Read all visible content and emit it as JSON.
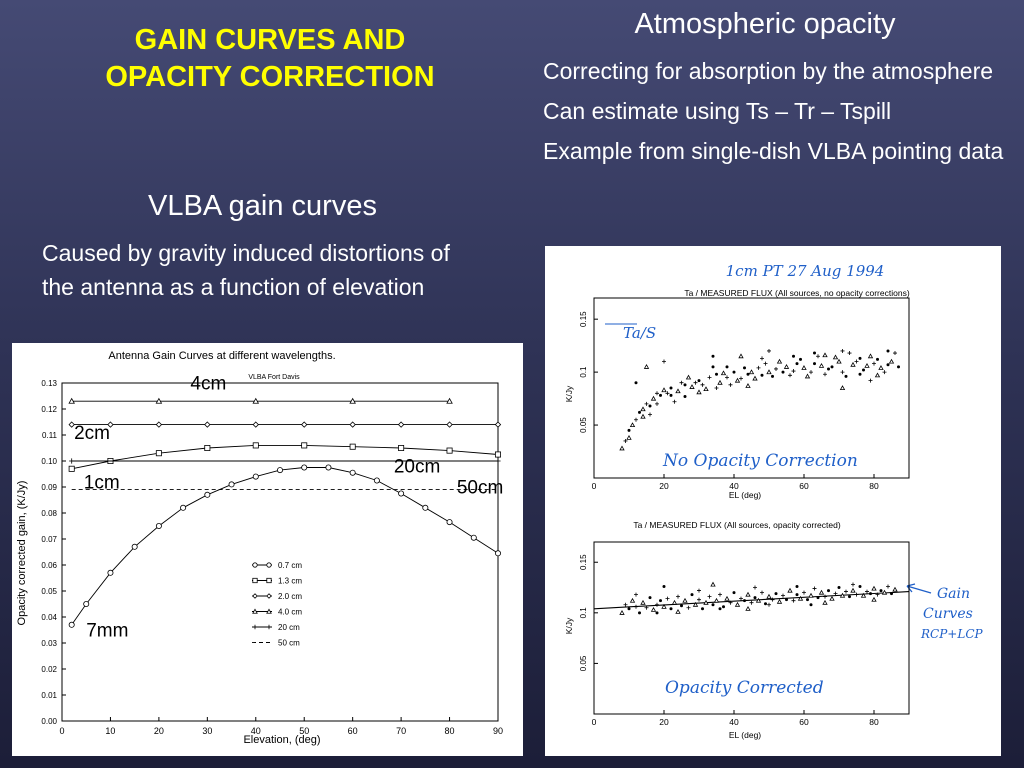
{
  "slide": {
    "title_line1": "GAIN CURVES AND",
    "title_line2": "OPACITY CORRECTION",
    "left_heading": "VLBA gain curves",
    "left_body": "Caused by gravity induced distortions of the antenna as a function of elevation",
    "right_heading": "Atmospheric opacity",
    "right_bullets": [
      "Correcting for absorption by the atmosphere",
      "Can estimate using Ts – Tr – Tspill",
      "Example from single-dish VLBA pointing data"
    ]
  },
  "colors": {
    "title": "#ffff00",
    "text": "#ffffff",
    "annotation_ink": "#1f5fc8"
  },
  "chart_data": [
    {
      "type": "line",
      "title": "Antenna Gain Curves at different wavelengths.",
      "subtitle": "VLBA Fort Davis",
      "xlabel": "Elevation, (deg)",
      "ylabel": "Opacity corrected gain, (K/Jy)",
      "xlim": [
        0,
        90
      ],
      "ylim": [
        0,
        0.13
      ],
      "xticks": [
        0,
        10,
        20,
        30,
        40,
        50,
        60,
        70,
        80,
        90
      ],
      "yticks": [
        0,
        0.01,
        0.02,
        0.03,
        0.04,
        0.05,
        0.06,
        0.07,
        0.08,
        0.09,
        0.1,
        0.11,
        0.12,
        0.13
      ],
      "ytick_labels": [
        "0.00",
        "0.01",
        "0.02",
        "0.03",
        "0.04",
        "0.05",
        "0.06",
        "0.07",
        "0.08",
        "0.09",
        "0.10",
        "0.11",
        "0.12",
        "0.13"
      ],
      "legend_position": "lower-right",
      "series": [
        {
          "name": "0.7 cm",
          "marker": "circle",
          "dash": "",
          "x": [
            2,
            5,
            10,
            15,
            20,
            25,
            30,
            35,
            40,
            45,
            50,
            55,
            60,
            65,
            70,
            75,
            80,
            85,
            90
          ],
          "y": [
            0.037,
            0.045,
            0.057,
            0.067,
            0.075,
            0.082,
            0.087,
            0.091,
            0.094,
            0.0965,
            0.0975,
            0.0975,
            0.0955,
            0.0925,
            0.0875,
            0.082,
            0.0765,
            0.0705,
            0.0645
          ]
        },
        {
          "name": "1.3 cm",
          "marker": "square",
          "dash": "",
          "x": [
            2,
            10,
            20,
            30,
            40,
            50,
            60,
            70,
            80,
            90
          ],
          "y": [
            0.097,
            0.1,
            0.103,
            0.105,
            0.106,
            0.106,
            0.1055,
            0.105,
            0.104,
            0.1025
          ]
        },
        {
          "name": "2.0 cm",
          "marker": "diamond",
          "dash": "",
          "x": [
            2,
            10,
            20,
            30,
            40,
            50,
            60,
            70,
            80,
            90
          ],
          "y": [
            0.114,
            0.114,
            0.114,
            0.114,
            0.114,
            0.114,
            0.114,
            0.114,
            0.114,
            0.114
          ]
        },
        {
          "name": "4.0 cm",
          "marker": "triangle",
          "dash": "",
          "x": [
            2,
            20,
            40,
            60,
            80
          ],
          "y": [
            0.123,
            0.123,
            0.123,
            0.123,
            0.123
          ]
        },
        {
          "name": "20 cm",
          "marker": "plus",
          "dash": "",
          "x": [
            2,
            90
          ],
          "y": [
            0.1,
            0.1
          ]
        },
        {
          "name": "50 cm",
          "marker": "none",
          "dash": "4,3",
          "x": [
            2,
            90
          ],
          "y": [
            0.089,
            0.089
          ]
        }
      ],
      "annotations": [
        {
          "text": "4cm",
          "x": 26.5,
          "y": 0.1275
        },
        {
          "text": "2cm",
          "x": 2.5,
          "y": 0.1085
        },
        {
          "text": "1cm",
          "x": 4.5,
          "y": 0.0895
        },
        {
          "text": "20cm",
          "x": 68.5,
          "y": 0.0955
        },
        {
          "text": "50cm",
          "x": 81.5,
          "y": 0.0875
        },
        {
          "text": "7mm",
          "x": 5,
          "y": 0.0325
        }
      ]
    },
    {
      "type": "scatter",
      "title": "Ta / MEASURED FLUX (All sources, no opacity corrections)",
      "xlabel": "EL (deg)",
      "ylabel": "K/Jy",
      "xlim": [
        0,
        90
      ],
      "ylim": [
        0,
        0.17
      ],
      "xticks": [
        0,
        20,
        40,
        60,
        80
      ],
      "yticks": [
        0.05,
        0.1,
        0.15
      ],
      "ytick_labels": [
        "0.05",
        "0.1",
        "0.15"
      ],
      "header_note": "1cm   PT   27 Aug 1994",
      "annotations": [
        "Ta/S",
        "No Opacity Correction"
      ],
      "points": [
        [
          8,
          0.028
        ],
        [
          9,
          0.035
        ],
        [
          10,
          0.045
        ],
        [
          11,
          0.05
        ],
        [
          12,
          0.055
        ],
        [
          13,
          0.062
        ],
        [
          14,
          0.065
        ],
        [
          15,
          0.07
        ],
        [
          16,
          0.068
        ],
        [
          17,
          0.075
        ],
        [
          18,
          0.08
        ],
        [
          19,
          0.078
        ],
        [
          20,
          0.083
        ],
        [
          21,
          0.08
        ],
        [
          22,
          0.085
        ],
        [
          24,
          0.082
        ],
        [
          25,
          0.09
        ],
        [
          26,
          0.088
        ],
        [
          28,
          0.086
        ],
        [
          29,
          0.09
        ],
        [
          30,
          0.092
        ],
        [
          32,
          0.084
        ],
        [
          33,
          0.095
        ],
        [
          35,
          0.098
        ],
        [
          36,
          0.09
        ],
        [
          38,
          0.095
        ],
        [
          40,
          0.1
        ],
        [
          41,
          0.092
        ],
        [
          42,
          0.094
        ],
        [
          44,
          0.098
        ],
        [
          45,
          0.1
        ],
        [
          47,
          0.104
        ],
        [
          48,
          0.097
        ],
        [
          50,
          0.1
        ],
        [
          52,
          0.103
        ],
        [
          54,
          0.1
        ],
        [
          55,
          0.105
        ],
        [
          57,
          0.101
        ],
        [
          58,
          0.108
        ],
        [
          60,
          0.104
        ],
        [
          62,
          0.1
        ],
        [
          63,
          0.108
        ],
        [
          65,
          0.106
        ],
        [
          66,
          0.098
        ],
        [
          68,
          0.105
        ],
        [
          70,
          0.11
        ],
        [
          71,
          0.1
        ],
        [
          72,
          0.096
        ],
        [
          74,
          0.107
        ],
        [
          75,
          0.11
        ],
        [
          77,
          0.102
        ],
        [
          78,
          0.106
        ],
        [
          80,
          0.108
        ],
        [
          81,
          0.112
        ],
        [
          82,
          0.104
        ],
        [
          83,
          0.1
        ],
        [
          84,
          0.107
        ],
        [
          85,
          0.11
        ],
        [
          86,
          0.118
        ],
        [
          87,
          0.105
        ],
        [
          14,
          0.058
        ],
        [
          18,
          0.07
        ],
        [
          22,
          0.078
        ],
        [
          27,
          0.095
        ],
        [
          31,
          0.088
        ],
        [
          34,
          0.105
        ],
        [
          37,
          0.099
        ],
        [
          39,
          0.088
        ],
        [
          43,
          0.104
        ],
        [
          46,
          0.094
        ],
        [
          49,
          0.108
        ],
        [
          51,
          0.096
        ],
        [
          53,
          0.11
        ],
        [
          56,
          0.097
        ],
        [
          59,
          0.112
        ],
        [
          61,
          0.096
        ],
        [
          64,
          0.115
        ],
        [
          67,
          0.103
        ],
        [
          69,
          0.114
        ],
        [
          73,
          0.118
        ],
        [
          76,
          0.098
        ],
        [
          79,
          0.115
        ],
        [
          23,
          0.072
        ],
        [
          26,
          0.077
        ],
        [
          30,
          0.081
        ],
        [
          35,
          0.085
        ],
        [
          12,
          0.09
        ],
        [
          15,
          0.105
        ],
        [
          20,
          0.11
        ],
        [
          34,
          0.115
        ],
        [
          42,
          0.115
        ],
        [
          50,
          0.12
        ],
        [
          63,
          0.118
        ],
        [
          71,
          0.085
        ],
        [
          79,
          0.092
        ],
        [
          84,
          0.12
        ],
        [
          10,
          0.038
        ],
        [
          16,
          0.06
        ],
        [
          38,
          0.105
        ],
        [
          44,
          0.087
        ],
        [
          48,
          0.113
        ],
        [
          57,
          0.115
        ],
        [
          66,
          0.116
        ],
        [
          71,
          0.12
        ],
        [
          76,
          0.113
        ],
        [
          81,
          0.097
        ]
      ]
    },
    {
      "type": "scatter",
      "title": "Ta / MEASURED FLUX (All sources, opacity corrected)",
      "xlabel": "EL (deg)",
      "ylabel": "K/Jy",
      "xlim": [
        0,
        90
      ],
      "ylim": [
        0,
        0.17
      ],
      "xticks": [
        0,
        20,
        40,
        60,
        80
      ],
      "yticks": [
        0.05,
        0.1,
        0.15
      ],
      "ytick_labels": [
        "0.05",
        "0.1",
        "0.15"
      ],
      "annotations": [
        "Opacity Corrected",
        "Gain",
        "Curves",
        "RCP+LCP"
      ],
      "gain_curve": {
        "x": [
          0,
          90
        ],
        "y": [
          0.104,
          0.121
        ]
      },
      "points": [
        [
          8,
          0.1
        ],
        [
          9,
          0.108
        ],
        [
          10,
          0.104
        ],
        [
          11,
          0.112
        ],
        [
          12,
          0.106
        ],
        [
          13,
          0.1
        ],
        [
          14,
          0.11
        ],
        [
          15,
          0.105
        ],
        [
          16,
          0.115
        ],
        [
          17,
          0.103
        ],
        [
          18,
          0.108
        ],
        [
          19,
          0.112
        ],
        [
          20,
          0.106
        ],
        [
          21,
          0.114
        ],
        [
          22,
          0.104
        ],
        [
          23,
          0.11
        ],
        [
          24,
          0.116
        ],
        [
          25,
          0.107
        ],
        [
          26,
          0.112
        ],
        [
          27,
          0.105
        ],
        [
          28,
          0.118
        ],
        [
          29,
          0.108
        ],
        [
          30,
          0.113
        ],
        [
          31,
          0.104
        ],
        [
          32,
          0.11
        ],
        [
          33,
          0.116
        ],
        [
          34,
          0.108
        ],
        [
          35,
          0.112
        ],
        [
          36,
          0.118
        ],
        [
          37,
          0.106
        ],
        [
          38,
          0.114
        ],
        [
          39,
          0.11
        ],
        [
          40,
          0.12
        ],
        [
          41,
          0.108
        ],
        [
          42,
          0.114
        ],
        [
          43,
          0.112
        ],
        [
          44,
          0.118
        ],
        [
          45,
          0.11
        ],
        [
          46,
          0.115
        ],
        [
          47,
          0.112
        ],
        [
          48,
          0.12
        ],
        [
          49,
          0.109
        ],
        [
          50,
          0.116
        ],
        [
          51,
          0.113
        ],
        [
          52,
          0.119
        ],
        [
          53,
          0.111
        ],
        [
          54,
          0.117
        ],
        [
          55,
          0.113
        ],
        [
          56,
          0.122
        ],
        [
          57,
          0.112
        ],
        [
          58,
          0.118
        ],
        [
          59,
          0.114
        ],
        [
          60,
          0.12
        ],
        [
          61,
          0.113
        ],
        [
          62,
          0.117
        ],
        [
          63,
          0.124
        ],
        [
          64,
          0.115
        ],
        [
          65,
          0.12
        ],
        [
          66,
          0.116
        ],
        [
          67,
          0.122
        ],
        [
          68,
          0.114
        ],
        [
          69,
          0.119
        ],
        [
          70,
          0.125
        ],
        [
          71,
          0.117
        ],
        [
          72,
          0.121
        ],
        [
          73,
          0.116
        ],
        [
          74,
          0.122
        ],
        [
          75,
          0.118
        ],
        [
          76,
          0.126
        ],
        [
          77,
          0.117
        ],
        [
          78,
          0.121
        ],
        [
          79,
          0.119
        ],
        [
          80,
          0.124
        ],
        [
          81,
          0.118
        ],
        [
          82,
          0.122
        ],
        [
          83,
          0.12
        ],
        [
          84,
          0.126
        ],
        [
          85,
          0.119
        ],
        [
          86,
          0.123
        ],
        [
          12,
          0.118
        ],
        [
          18,
          0.1
        ],
        [
          24,
          0.101
        ],
        [
          30,
          0.122
        ],
        [
          36,
          0.104
        ],
        [
          44,
          0.104
        ],
        [
          50,
          0.108
        ],
        [
          58,
          0.126
        ],
        [
          66,
          0.11
        ],
        [
          74,
          0.128
        ],
        [
          20,
          0.126
        ],
        [
          34,
          0.128
        ],
        [
          46,
          0.125
        ],
        [
          62,
          0.108
        ],
        [
          80,
          0.113
        ]
      ]
    }
  ]
}
